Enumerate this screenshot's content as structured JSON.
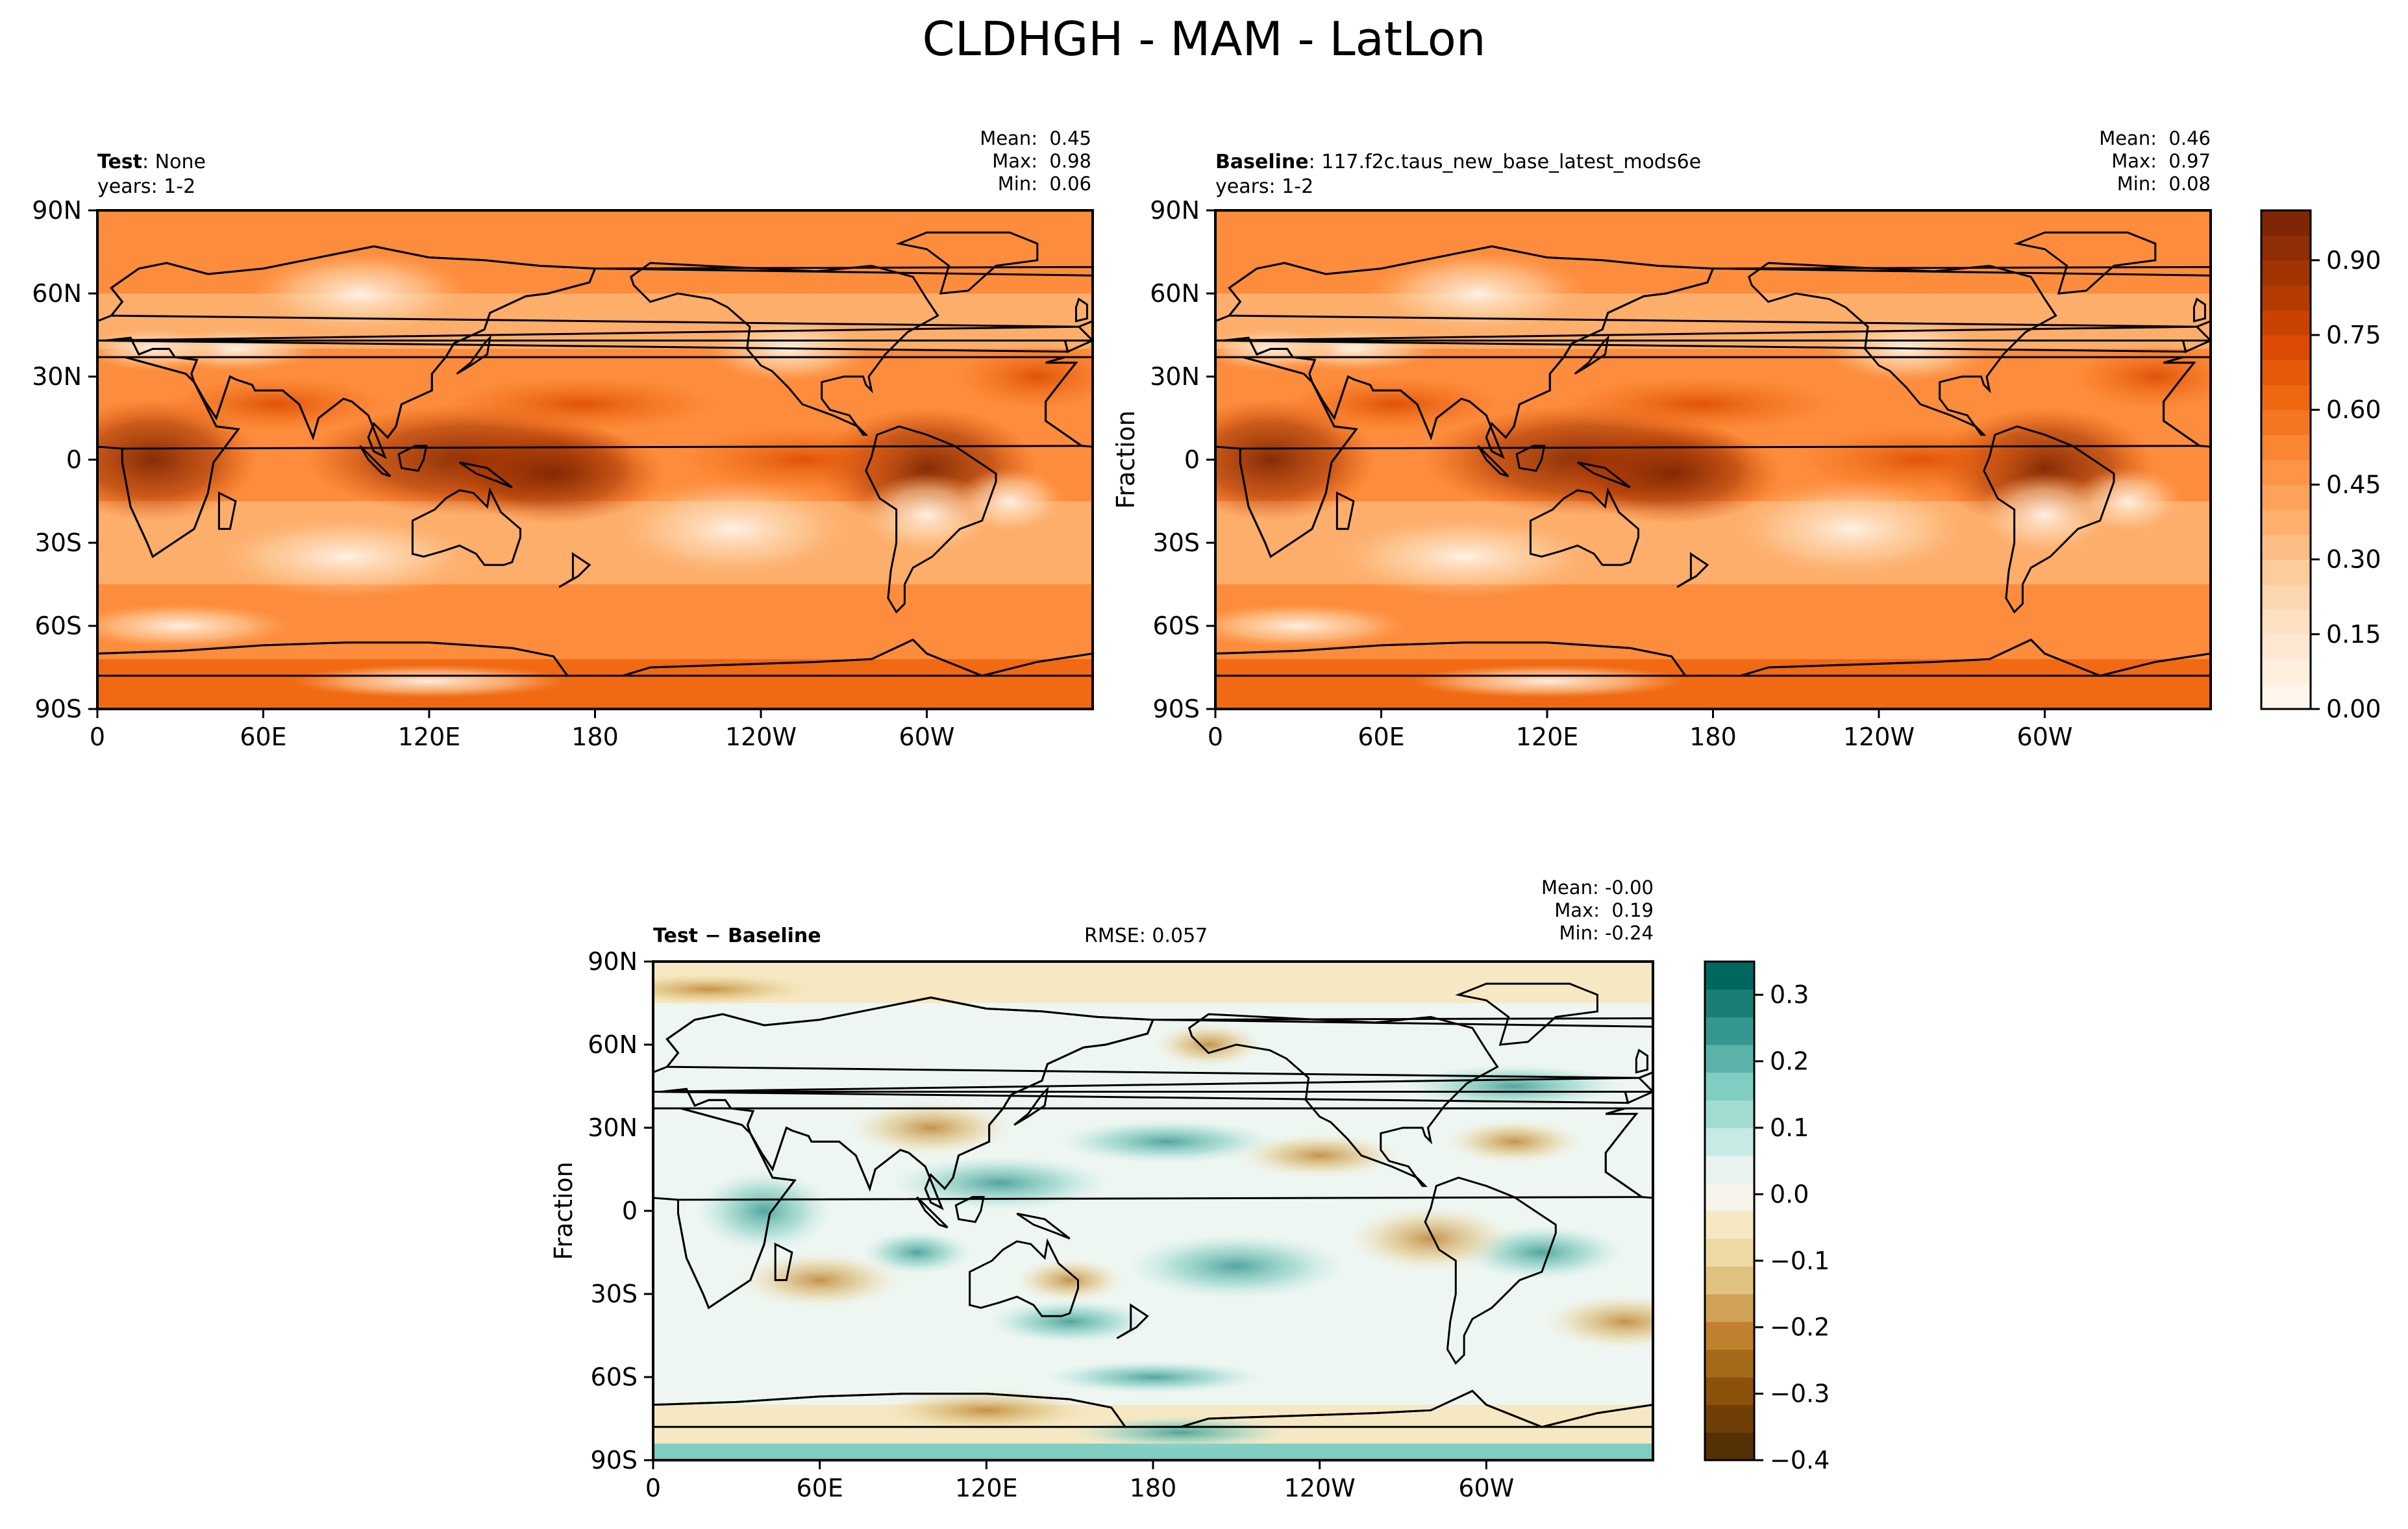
{
  "title": "CLDHGH - MAM - LatLon",
  "panels": [
    {
      "id": "test",
      "label_bold": "Test",
      "label_rest": ": None",
      "years": "years: 1-2",
      "stats": {
        "mean": "0.45",
        "max": "0.98",
        "min": "0.06"
      },
      "ylabel": ""
    },
    {
      "id": "baseline",
      "label_bold": "Baseline",
      "label_rest": ": 117.f2c.taus_new_base_latest_mods6e",
      "years": "years: 1-2",
      "stats": {
        "mean": "0.46",
        "max": "0.97",
        "min": "0.08"
      },
      "ylabel": "Fraction"
    },
    {
      "id": "diff",
      "label_bold": "Test − Baseline",
      "rmse": "RMSE: 0.057",
      "stats": {
        "mean": "-0.00",
        "max": "0.19",
        "min": "-0.24"
      },
      "ylabel": "Fraction"
    }
  ],
  "stat_labels": {
    "mean": "Mean:",
    "max": "Max:",
    "min": "Min:"
  },
  "chart_data": [
    {
      "type": "heatmap",
      "name": "Test",
      "variable": "CLDHGH",
      "season": "MAM",
      "xlabel": "",
      "ylabel": "",
      "xticks": [
        "0",
        "60E",
        "120E",
        "180",
        "120W",
        "60W"
      ],
      "yticks": [
        "90N",
        "60N",
        "30N",
        "0",
        "30S",
        "60S",
        "90S"
      ],
      "xlim": [
        0,
        360
      ],
      "ylim": [
        -90,
        90
      ],
      "colormap": "Oranges",
      "colorbar_ticks": [
        "0.00",
        "0.15",
        "0.30",
        "0.45",
        "0.60",
        "0.75",
        "0.90"
      ],
      "colorbar_range": [
        0,
        1
      ],
      "mean": 0.45,
      "max": 0.98,
      "min": 0.06
    },
    {
      "type": "heatmap",
      "name": "Baseline",
      "variable": "CLDHGH",
      "season": "MAM",
      "xlabel": "",
      "ylabel": "Fraction",
      "xticks": [
        "0",
        "60E",
        "120E",
        "180",
        "120W",
        "60W"
      ],
      "yticks": [
        "90N",
        "60N",
        "30N",
        "0",
        "30S",
        "60S",
        "90S"
      ],
      "xlim": [
        0,
        360
      ],
      "ylim": [
        -90,
        90
      ],
      "colormap": "Oranges",
      "mean": 0.46,
      "max": 0.97,
      "min": 0.08
    },
    {
      "type": "heatmap",
      "name": "Test - Baseline",
      "variable": "CLDHGH",
      "season": "MAM",
      "xlabel": "",
      "ylabel": "Fraction",
      "xticks": [
        "0",
        "60E",
        "120E",
        "180",
        "120W",
        "60W"
      ],
      "yticks": [
        "90N",
        "60N",
        "30N",
        "0",
        "30S",
        "60S",
        "90S"
      ],
      "xlim": [
        0,
        360
      ],
      "ylim": [
        -90,
        90
      ],
      "colormap": "BrBG",
      "colorbar_ticks": [
        "−0.4",
        "−0.3",
        "−0.2",
        "−0.1",
        "0.0",
        "0.1",
        "0.2",
        "0.3"
      ],
      "colorbar_range": [
        -0.4,
        0.35
      ],
      "rmse": 0.057,
      "mean": -0.0,
      "max": 0.19,
      "min": -0.24
    }
  ],
  "colors": {
    "oranges": [
      "#fff5eb",
      "#fee6ce",
      "#fdd0a2",
      "#fdae6b",
      "#fd8d3c",
      "#f16913",
      "#d94801",
      "#a63603",
      "#7f2704"
    ],
    "brbg": [
      "#543005",
      "#8c510a",
      "#bf812d",
      "#dfc27d",
      "#f6e8c3",
      "#f5f5f5",
      "#c7eae5",
      "#80cdc1",
      "#35978f",
      "#01665e",
      "#003c30"
    ]
  }
}
